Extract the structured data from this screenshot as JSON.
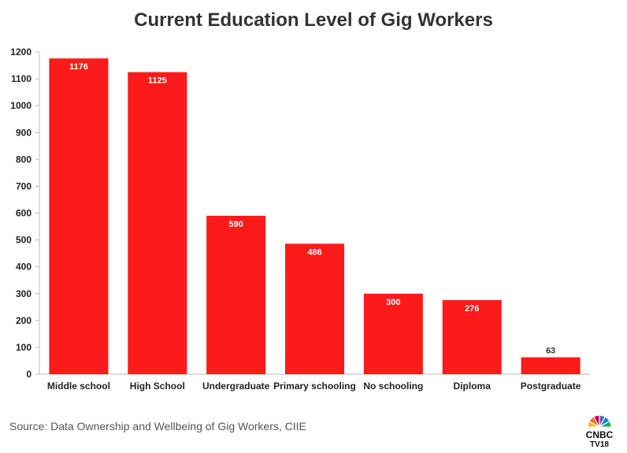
{
  "chart_data": {
    "type": "bar",
    "title": "Current Education Level of Gig Workers",
    "xlabel": "",
    "ylabel": "",
    "categories": [
      "Middle school",
      "High School",
      "Undergraduate",
      "Primary schooling",
      "No schooling",
      "Diploma",
      "Postgraduate"
    ],
    "values": [
      1176,
      1125,
      590,
      486,
      300,
      276,
      63
    ],
    "ylim": [
      0,
      1200
    ],
    "yticks": [
      0,
      100,
      200,
      300,
      400,
      500,
      600,
      700,
      800,
      900,
      1000,
      1100,
      1200
    ],
    "bar_color": "#fc1a1a",
    "grid": false,
    "data_labels": true
  },
  "source": "Source: Data Ownership and Wellbeing of Gig Workers, CIIE",
  "logo": {
    "text": "CNBC",
    "subtext": "TV18",
    "colors": [
      "#fcb711",
      "#f37021",
      "#cc004c",
      "#6460aa",
      "#0089d0",
      "#0db14b"
    ]
  }
}
